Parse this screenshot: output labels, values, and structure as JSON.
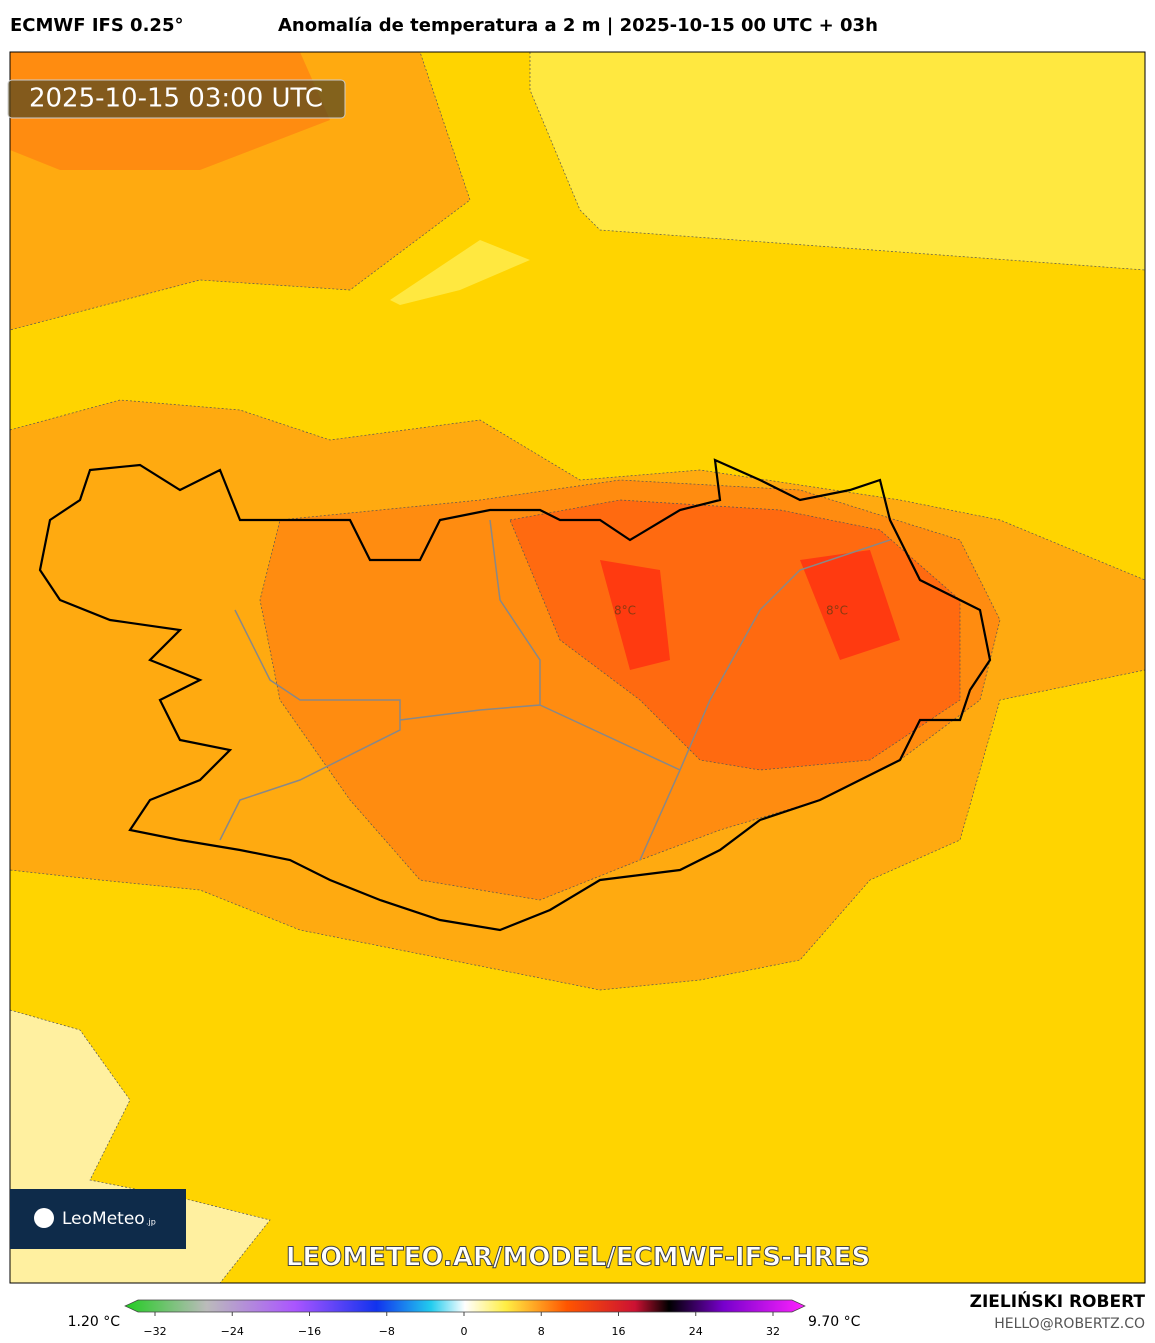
{
  "header": {
    "model": "ECMWF IFS 0.25°",
    "title": "Anomalía de temperatura a 2 m | 2025-10-15 00 UTC + 03h"
  },
  "map": {
    "valid_time": "2025-10-15 03:00 UTC",
    "contour_labels": [
      "8°C",
      "8°C"
    ],
    "logo": "LeoMeteo",
    "logo_suffix": ".jp",
    "url": "LEOMETEO.AR/MODEL/ECMWF-IFS-HRES"
  },
  "colorbar": {
    "min_label": "1.20 °C",
    "max_label": "9.70 °C",
    "lim": [
      -32,
      32
    ],
    "ticks": [
      {
        "value": -32,
        "label": "−32"
      },
      {
        "value": -24,
        "label": "−24"
      },
      {
        "value": -16,
        "label": "−16"
      },
      {
        "value": -8,
        "label": "−8"
      },
      0,
      8,
      16,
      24,
      32
    ]
  },
  "footer": {
    "author": "ZIELIŃSKI ROBERT",
    "email": "HELLO@ROBERTZ.CO"
  }
}
